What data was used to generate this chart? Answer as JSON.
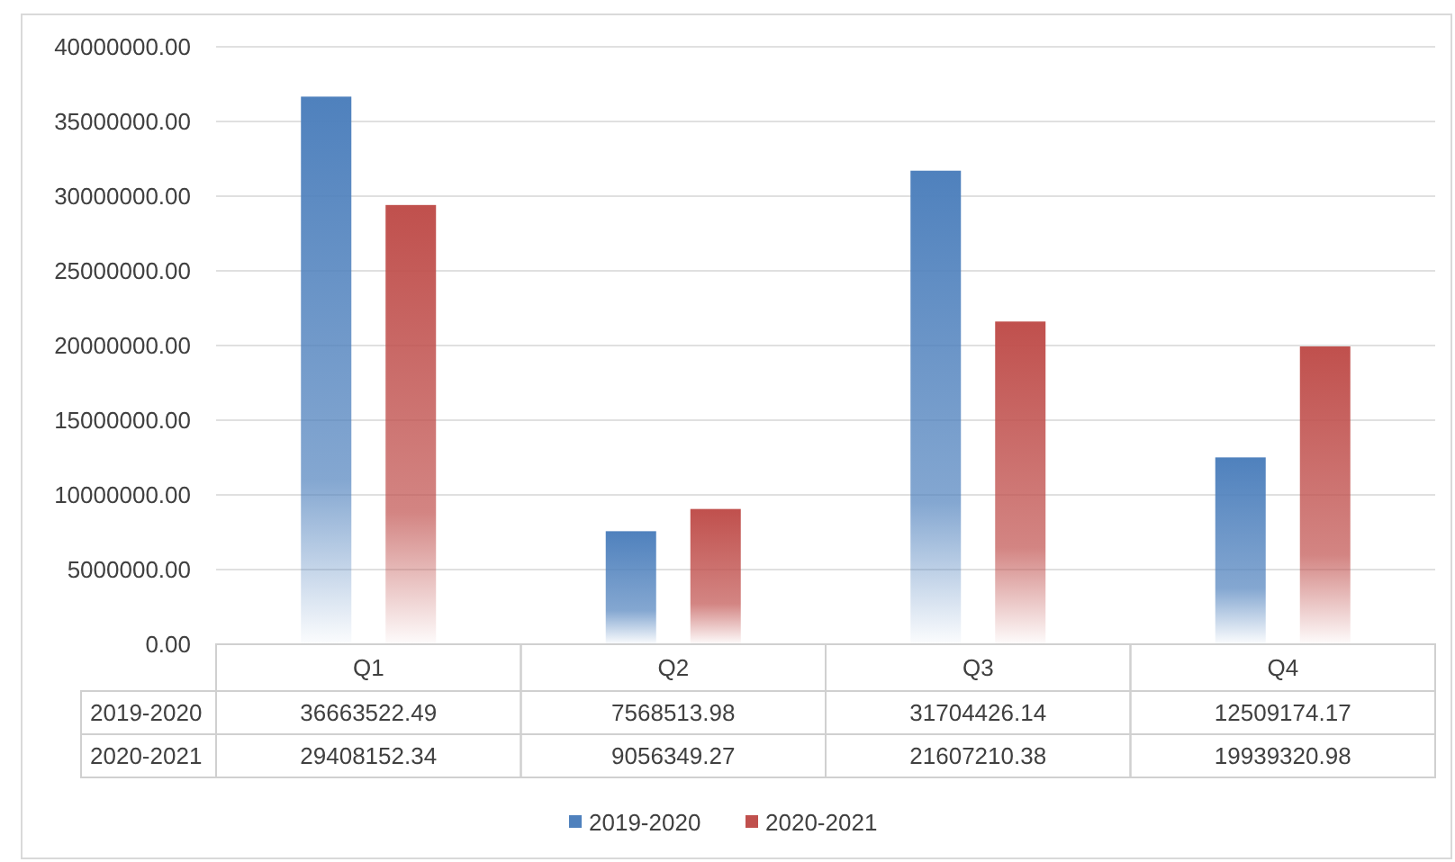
{
  "chart_data": {
    "type": "bar",
    "categories": [
      "Q1",
      "Q2",
      "Q3",
      "Q4"
    ],
    "series": [
      {
        "name": "2019-2020",
        "color": "#4f81bd",
        "values": [
          36663522.49,
          7568513.98,
          31704426.14,
          12509174.17
        ]
      },
      {
        "name": "2020-2021",
        "color": "#c0504d",
        "values": [
          29408152.34,
          9056349.27,
          21607210.38,
          19939320.98
        ]
      }
    ],
    "ylim": [
      0,
      40000000
    ],
    "yticks": [
      {
        "value": 0,
        "label": "0.00"
      },
      {
        "value": 5000000,
        "label": "5000000.00"
      },
      {
        "value": 10000000,
        "label": "10000000.00"
      },
      {
        "value": 15000000,
        "label": "15000000.00"
      },
      {
        "value": 20000000,
        "label": "20000000.00"
      },
      {
        "value": 25000000,
        "label": "25000000.00"
      },
      {
        "value": 30000000,
        "label": "30000000.00"
      },
      {
        "value": 35000000,
        "label": "35000000.00"
      },
      {
        "value": 40000000,
        "label": "40000000.00"
      }
    ],
    "grid": "y",
    "data_labels": true,
    "legend": "bottom"
  }
}
